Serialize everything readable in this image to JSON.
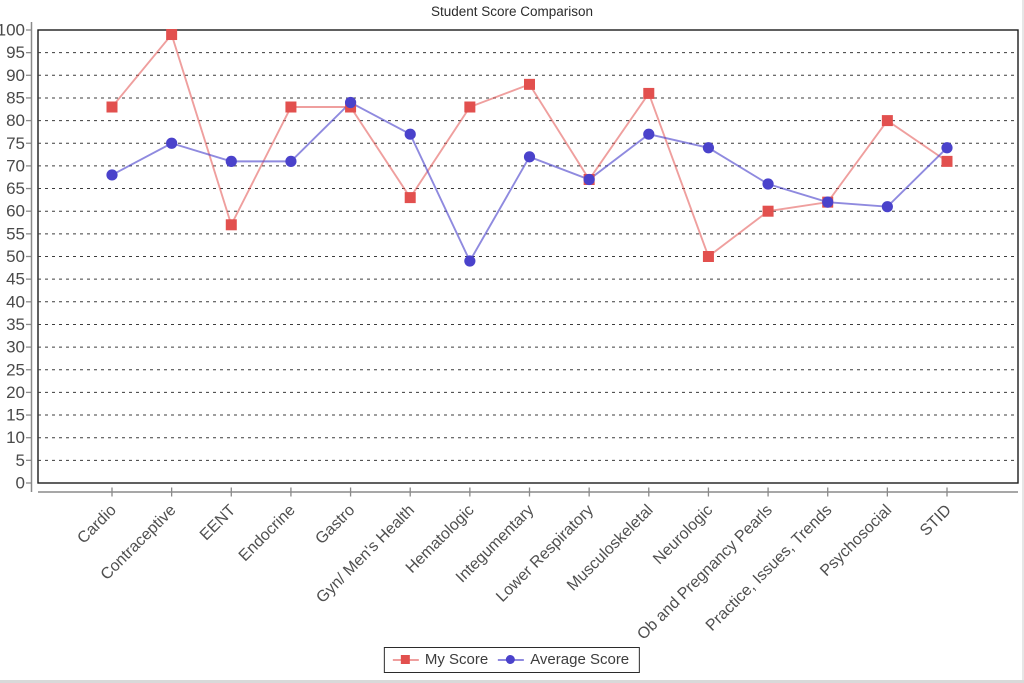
{
  "chart_data": {
    "type": "line",
    "title": "Student Score Comparison",
    "categories": [
      "Cardio",
      "Contraceptive",
      "EENT",
      "Endocrine",
      "Gastro",
      "Gyn/ Men's Health",
      "Hematologic",
      "Integumentary",
      "Lower Respiratory",
      "Musculoskeletal",
      "Neurologic",
      "Ob and Pregnancy Pearls",
      "Practice, Issues, Trends",
      "Psychosocial",
      "STID"
    ],
    "series": [
      {
        "name": "My Score",
        "marker": "square",
        "color": "#e2504e",
        "line_color": "rgba(226,80,78,0.55)",
        "values": [
          83,
          99,
          57,
          83,
          83,
          63,
          83,
          88,
          67,
          86,
          50,
          60,
          62,
          80,
          71
        ]
      },
      {
        "name": "Average Score",
        "marker": "circle",
        "color": "#4a42cb",
        "line_color": "rgba(74,66,203,0.62)",
        "values": [
          68,
          75,
          71,
          71,
          84,
          77,
          49,
          72,
          67,
          77,
          74,
          66,
          62,
          61,
          74
        ]
      }
    ],
    "xlabel": "",
    "ylabel": "",
    "ylim": [
      0,
      100
    ],
    "ytick_step": 5,
    "grid": "horizontal-dashed",
    "legend_position": "bottom-center",
    "axis_color": "#8a8a8a",
    "grid_color": "#3d3d3d",
    "tick_label_color": "#4a4a4a",
    "border_color": "#1c1c1c"
  }
}
